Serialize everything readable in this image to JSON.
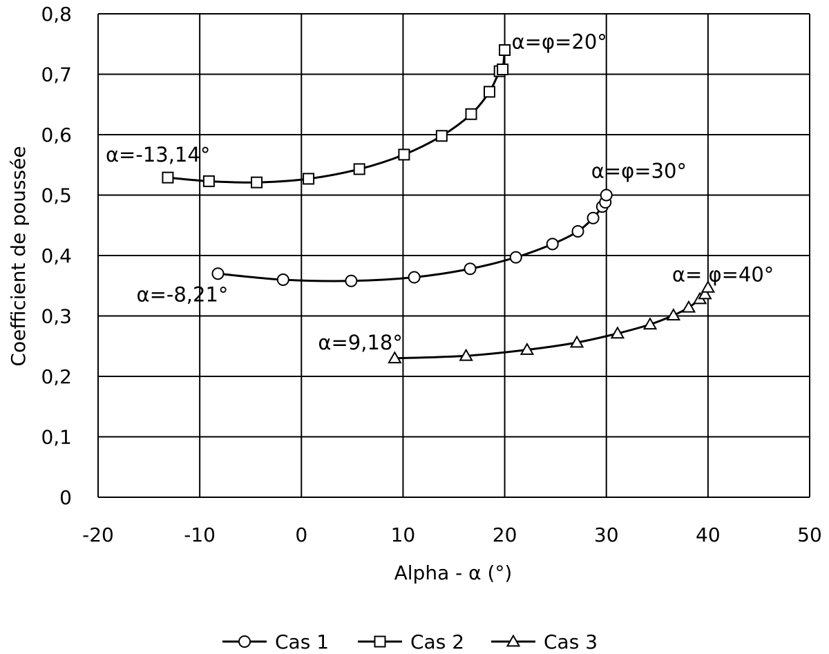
{
  "chart_data": {
    "type": "line",
    "xlabel": "Alpha - α (°)",
    "ylabel": "Coefficient de poussée",
    "xlim": [
      -20,
      50
    ],
    "ylim": [
      0,
      0.8
    ],
    "grid": true,
    "legend_position": "bottom",
    "x_tick_labels": [
      "-20",
      "-10",
      "0",
      "10",
      "20",
      "30",
      "40",
      "50"
    ],
    "y_tick_labels": [
      "0",
      "0,1",
      "0,2",
      "0,3",
      "0,4",
      "0,5",
      "0,6",
      "0,7",
      "0,8"
    ],
    "series": [
      {
        "name": "Cas 1",
        "marker": "circle",
        "x": [
          -8.21,
          -1.8,
          4.9,
          11.1,
          16.6,
          21.1,
          24.7,
          27.2,
          28.7,
          29.6,
          29.9,
          30.0
        ],
        "y": [
          0.37,
          0.36,
          0.358,
          0.364,
          0.378,
          0.397,
          0.419,
          0.44,
          0.462,
          0.481,
          0.488,
          0.5
        ]
      },
      {
        "name": "Cas 2",
        "marker": "square",
        "x": [
          -13.14,
          -9.1,
          -4.4,
          0.7,
          5.7,
          10.1,
          13.8,
          16.7,
          18.5,
          19.5,
          19.8,
          20.0
        ],
        "y": [
          0.529,
          0.523,
          0.521,
          0.527,
          0.543,
          0.567,
          0.598,
          0.634,
          0.671,
          0.705,
          0.708,
          0.74
        ]
      },
      {
        "name": "Cas 3",
        "marker": "triangle",
        "x": [
          9.18,
          16.2,
          22.2,
          27.1,
          31.1,
          34.3,
          36.6,
          38.1,
          39.2,
          39.7,
          40.0
        ],
        "y": [
          0.23,
          0.234,
          0.244,
          0.256,
          0.271,
          0.286,
          0.301,
          0.314,
          0.328,
          0.336,
          0.347
        ]
      }
    ],
    "annotations": [
      {
        "text": "α=-13,14°",
        "x": -13.14,
        "y": 0.529
      },
      {
        "text": "α=φ=20°",
        "x": 20.0,
        "y": 0.74
      },
      {
        "text": "α=φ=30°",
        "x": 30.0,
        "y": 0.5
      },
      {
        "text": "α=-8,21°",
        "x": -8.21,
        "y": 0.37
      },
      {
        "text": "α=9,18°",
        "x": 9.18,
        "y": 0.23
      },
      {
        "text": "α= φ=40°",
        "x": 40.0,
        "y": 0.347
      }
    ]
  }
}
